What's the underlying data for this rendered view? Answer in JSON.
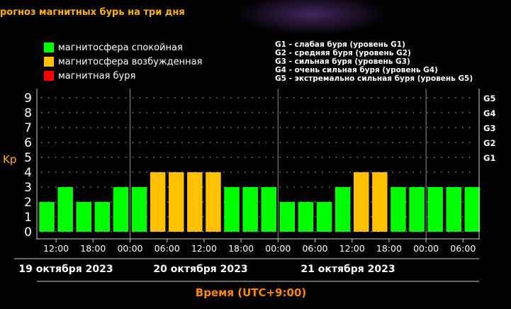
{
  "title": "рогноз магнитных бурь на три дня",
  "legend": {
    "items": [
      {
        "label": "магнитосфера спокойная",
        "color": "#00ff00"
      },
      {
        "label": "магнитосфера возбужденная",
        "color": "#ffc000"
      },
      {
        "label": "магнитная буря",
        "color": "#ff0000"
      }
    ],
    "g_items": [
      "G1 - слабая буря (уровень G1)",
      "G2 - средняя буря (уровень G2)",
      "G3 - сильная буря (уровень G3)",
      "G4 - очень сильная буря (уровень G4)",
      "G5 - экстремально сильная буря (уровень G5)"
    ]
  },
  "chart_data": {
    "type": "bar",
    "ylabel": "Kp",
    "ylim": [
      0,
      9
    ],
    "yticks": [
      "0",
      "1",
      "2",
      "3",
      "4",
      "5",
      "6",
      "7",
      "8",
      "9"
    ],
    "right_ticks": [
      {
        "label": "G1",
        "kp": 5
      },
      {
        "label": "G2",
        "kp": 6
      },
      {
        "label": "G3",
        "kp": 7
      },
      {
        "label": "G4",
        "kp": 8
      },
      {
        "label": "G5",
        "kp": 9
      }
    ],
    "x_tick_labels": [
      "12:00",
      "18:00",
      "00:00",
      "06:00",
      "12:00",
      "18:00",
      "00:00",
      "06:00",
      "12:00",
      "18:00",
      "00:00",
      "06:00"
    ],
    "days": [
      "19 октября 2023",
      "20 октября 2023",
      "21 октября 2023"
    ],
    "xlabel": "Время (UTC+9:00)",
    "values": [
      2,
      3,
      2,
      2,
      3,
      3,
      4,
      4,
      4,
      4,
      3,
      3,
      3,
      2,
      2,
      2,
      3,
      4,
      4,
      3,
      3,
      3,
      3,
      3
    ],
    "colors": {
      "quiet": "#00ff00",
      "excited": "#ffc000",
      "storm": "#ff0000"
    },
    "grid": "dotted"
  }
}
